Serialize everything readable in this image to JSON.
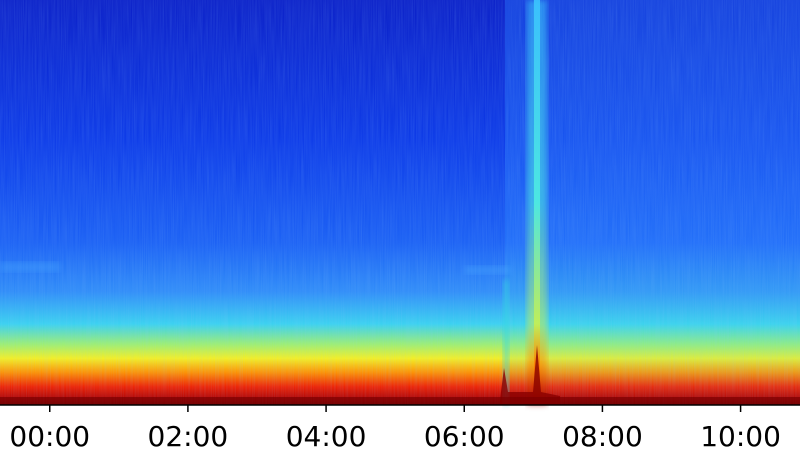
{
  "chart_data": {
    "type": "spectrogram",
    "xlim": [
      -0.72,
      10.86
    ],
    "xticks": [
      {
        "value": 0,
        "label": "00:00"
      },
      {
        "value": 2,
        "label": "02:00"
      },
      {
        "value": 4,
        "label": "04:00"
      },
      {
        "value": 6,
        "label": "06:00"
      },
      {
        "value": 8,
        "label": "08:00"
      },
      {
        "value": 10,
        "label": "10:00"
      }
    ]
  }
}
